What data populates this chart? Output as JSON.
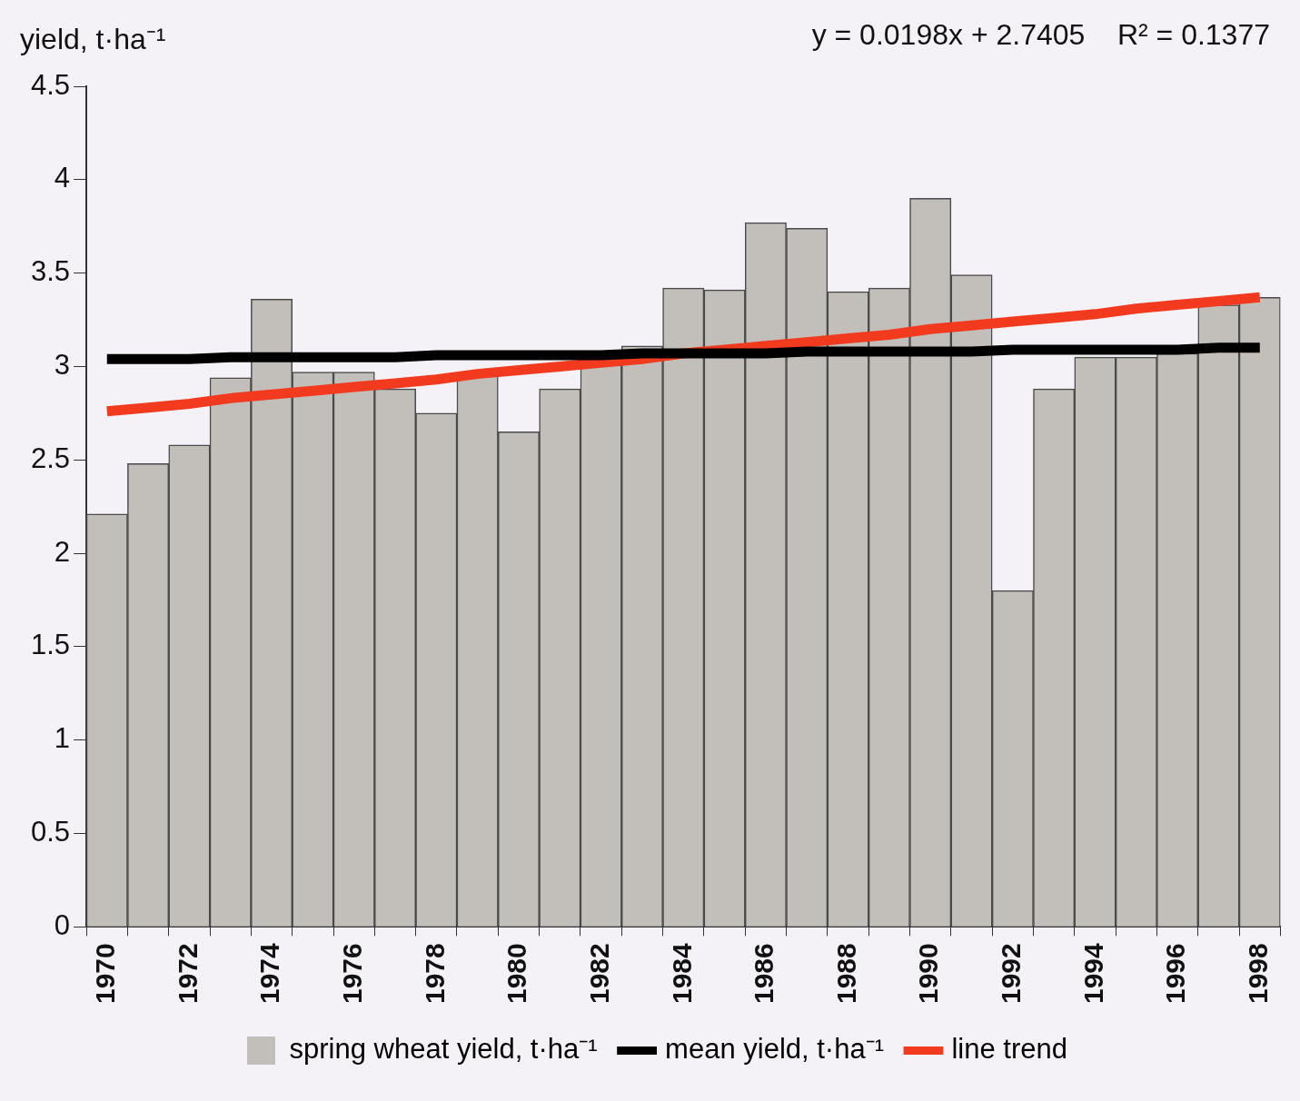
{
  "chart_data": {
    "type": "bar",
    "ylabel": "yield, t·ha⁻¹",
    "annotations": [
      "y = 0.0198x + 2.7405    R² = 0.1377"
    ],
    "categories": [
      "1970",
      null,
      "1972",
      null,
      "1974",
      null,
      "1976",
      null,
      "1978",
      null,
      "1980",
      null,
      "1982",
      null,
      "1984",
      null,
      "1986",
      null,
      "1988",
      null,
      "1990",
      null,
      "1992",
      null,
      "1994",
      null,
      "1996",
      null,
      "1998"
    ],
    "series": [
      {
        "name": "spring wheat yield, t·ha⁻¹",
        "color": "#c2bfbb",
        "values": [
          2.21,
          2.48,
          2.58,
          2.94,
          3.36,
          2.97,
          2.97,
          2.88,
          2.75,
          2.95,
          2.65,
          2.88,
          3.01,
          3.11,
          3.42,
          3.41,
          3.77,
          3.74,
          3.4,
          3.42,
          3.9,
          3.49,
          1.8,
          2.88,
          3.05,
          3.05,
          3.07,
          3.33,
          3.37
        ]
      },
      {
        "name": "mean yield, t·ha⁻¹",
        "type": "line",
        "color": "#000000",
        "values": [
          3.04,
          3.04,
          3.04,
          3.05,
          3.05,
          3.05,
          3.05,
          3.05,
          3.06,
          3.06,
          3.06,
          3.06,
          3.06,
          3.07,
          3.07,
          3.07,
          3.07,
          3.08,
          3.08,
          3.08,
          3.08,
          3.08,
          3.09,
          3.09,
          3.09,
          3.09,
          3.09,
          3.1,
          3.1
        ]
      },
      {
        "name": "line trend",
        "type": "line",
        "color": "#f23a1e",
        "values": [
          2.76,
          2.78,
          2.8,
          2.83,
          2.85,
          2.87,
          2.89,
          2.91,
          2.93,
          2.96,
          2.98,
          3,
          3.02,
          3.04,
          3.07,
          3.09,
          3.11,
          3.13,
          3.15,
          3.17,
          3.2,
          3.22,
          3.24,
          3.26,
          3.28,
          3.31,
          3.33,
          3.35,
          3.37
        ]
      }
    ],
    "ylim": [
      0,
      4.5
    ],
    "yticks": [
      0,
      0.5,
      1,
      1.5,
      2,
      2.5,
      3,
      3.5,
      4,
      4.5
    ],
    "grid": false,
    "legend": "bottom",
    "marker": "none",
    "line_style": "solid"
  }
}
